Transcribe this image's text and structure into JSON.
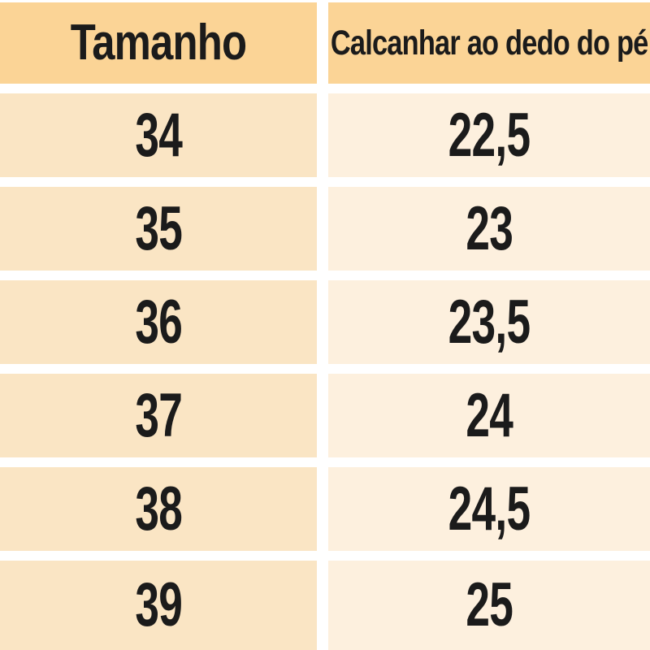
{
  "chart_data": {
    "type": "table",
    "title": "",
    "columns": [
      "Tamanho",
      "Calcanhar ao dedo do pé"
    ],
    "rows": [
      [
        "34",
        "22,5"
      ],
      [
        "35",
        "23"
      ],
      [
        "36",
        "23,5"
      ],
      [
        "37",
        "24"
      ],
      [
        "38",
        "24,5"
      ],
      [
        "39",
        "25"
      ]
    ]
  },
  "colors": {
    "header_bg": "#fbd496",
    "size_column_bg": "#fae5c4",
    "value_column_bg": "#fdf0de",
    "gap": "#ffffff",
    "text": "#1b1b1b"
  }
}
